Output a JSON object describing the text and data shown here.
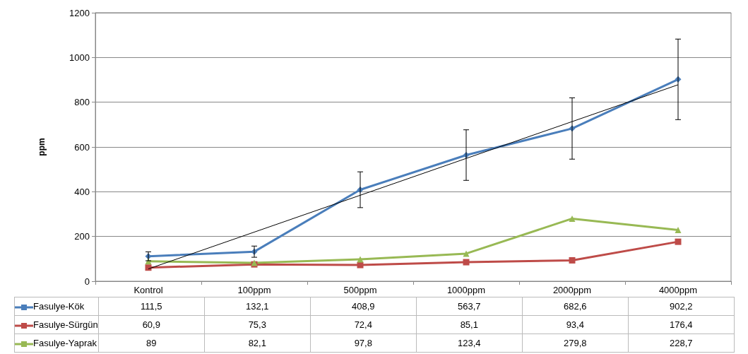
{
  "chart_data": {
    "type": "line",
    "ylabel": "ppm",
    "categories": [
      "Kontrol",
      "100ppm",
      "500ppm",
      "1000ppm",
      "2000ppm",
      "4000ppm"
    ],
    "ylim": [
      0,
      1200
    ],
    "yticks": [
      0,
      200,
      400,
      600,
      800,
      1000,
      1200
    ],
    "grid": "y",
    "legend": "bottom",
    "series": [
      {
        "name": "Fasulye-Kök",
        "color": "#4a7ebb",
        "marker": "diamond",
        "values": [
          111.5,
          132.1,
          408.9,
          563.7,
          682.6,
          902.2
        ],
        "value_labels": [
          "111,5",
          "132,1",
          "408,9",
          "563,7",
          "682,6",
          "902,2"
        ],
        "errors": [
          20,
          25,
          80,
          113,
          137,
          180
        ]
      },
      {
        "name": "Fasulye-Sürgün",
        "color": "#be4b48",
        "marker": "square",
        "values": [
          60.9,
          75.3,
          72.4,
          85.1,
          93.4,
          176.4
        ],
        "value_labels": [
          "60,9",
          "75,3",
          "72,4",
          "85,1",
          "93,4",
          "176,4"
        ]
      },
      {
        "name": "Fasulye-Yaprak",
        "color": "#98b954",
        "marker": "triangle",
        "values": [
          89,
          82.1,
          97.8,
          123.4,
          279.8,
          228.7
        ],
        "value_labels": [
          "89",
          "82,1",
          "97,8",
          "123,4",
          "279,8",
          "228,7"
        ]
      },
      {
        "type": "line",
        "color": "#000000",
        "marker": "none",
        "x": [
          "Kontrol",
          "4000ppm"
        ],
        "values": [
          55,
          878
        ]
      }
    ]
  }
}
